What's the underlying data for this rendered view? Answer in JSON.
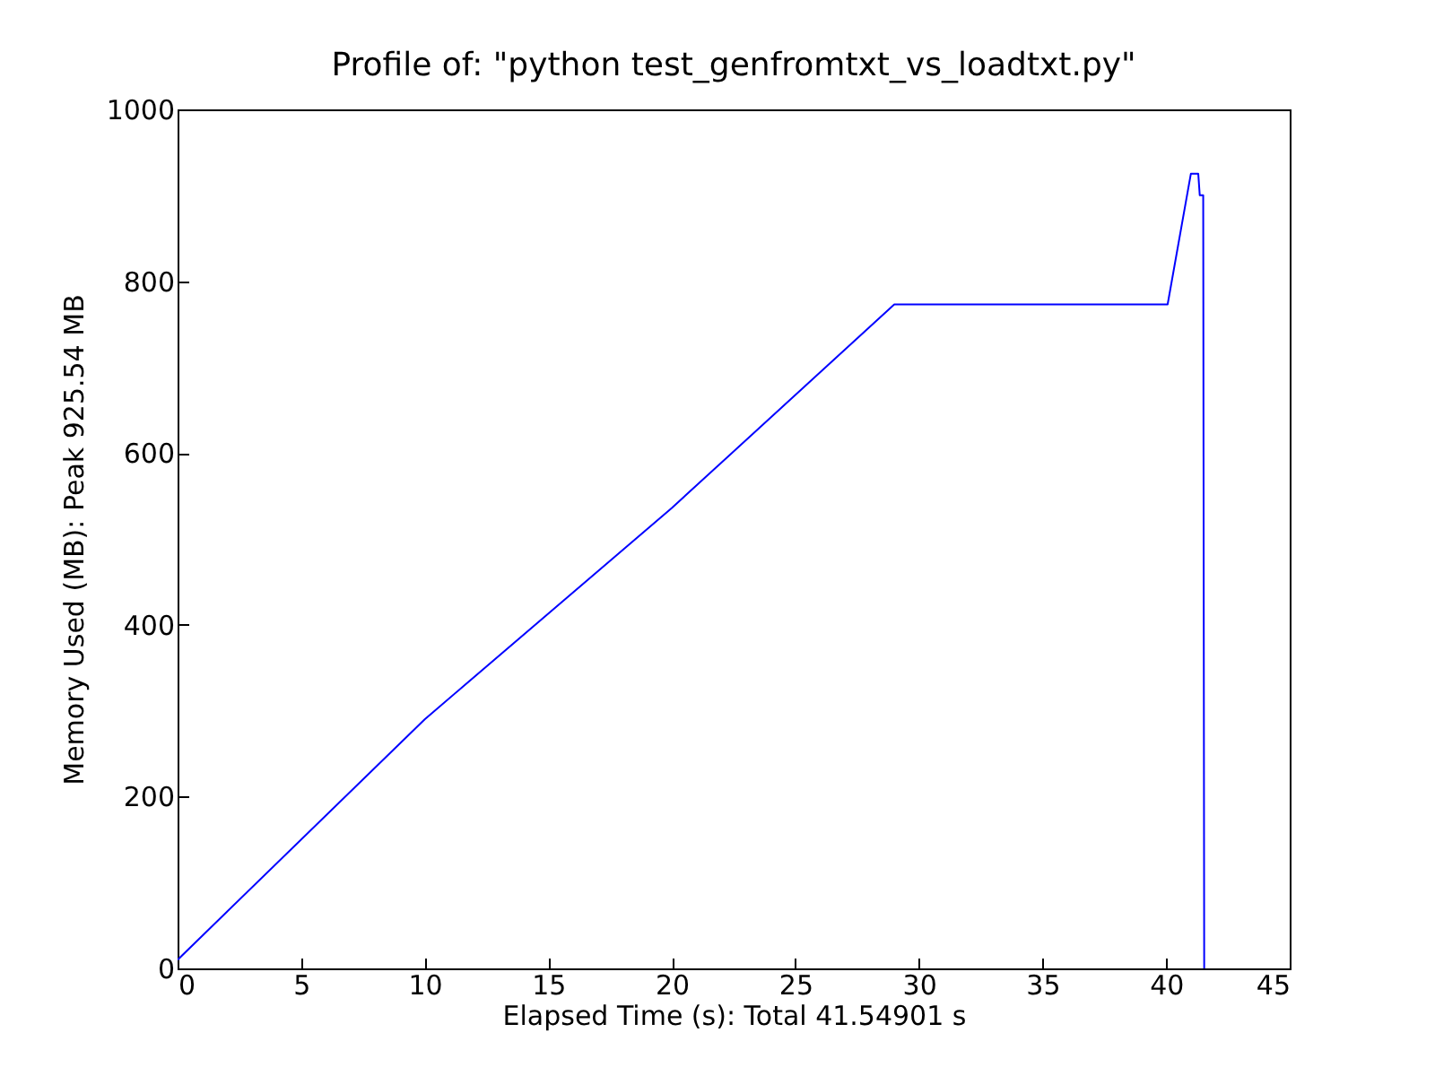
{
  "chart_data": {
    "type": "line",
    "title": "Profile of: \"python test_genfromtxt_vs_loadtxt.py\"",
    "xlabel": "Elapsed Time (s): Total 41.54901 s",
    "ylabel": "Memory Used (MB): Peak 925.54 MB",
    "x": [
      0,
      10,
      20,
      29,
      40.06,
      41.0,
      41.3,
      41.36,
      41.5,
      41.54
    ],
    "series": [
      {
        "color": "#0000ff",
        "values": [
          10,
          290,
          536,
          773,
          773,
          925,
          925,
          900,
          900,
          0
        ]
      }
    ],
    "xlim": [
      0,
      45
    ],
    "xticks": [
      0,
      5,
      10,
      15,
      20,
      25,
      30,
      35,
      40,
      45
    ],
    "ylim": [
      0,
      1000
    ],
    "yticks": [
      0,
      200,
      400,
      600,
      800,
      1000
    ],
    "grid": false,
    "marker": "none",
    "line_style": "solid"
  }
}
